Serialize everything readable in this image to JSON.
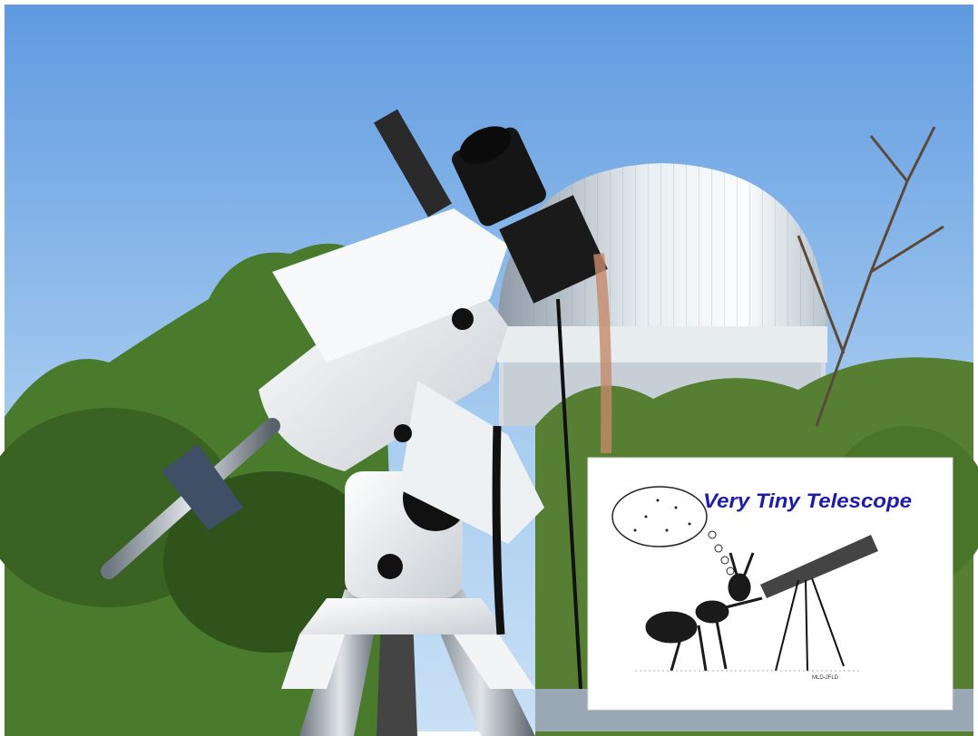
{
  "logo": {
    "title": "Very Tiny Telescope",
    "signature": "MLD-JFLD"
  }
}
